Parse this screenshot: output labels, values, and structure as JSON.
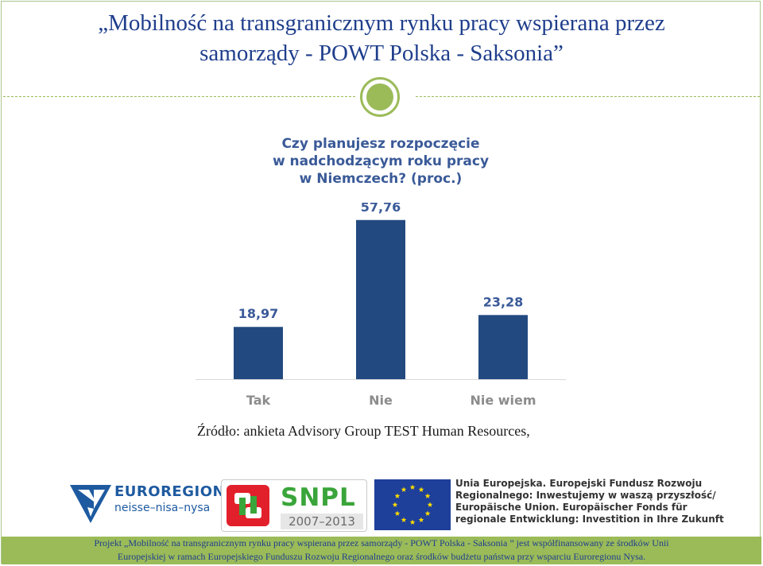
{
  "slide": {
    "title_line1": "„Mobilność na transgranicznym rynku pracy wspierana przez",
    "title_line2": "samorządy -  POWT Polska - Saksonia”"
  },
  "chart_data": {
    "type": "bar",
    "title_lines": [
      "Czy planujesz rozpoczęcie",
      "w nadchodzącym roku pracy",
      "w Niemczech? (proc.)"
    ],
    "categories": [
      "Tak",
      "Nie",
      "Nie wiem"
    ],
    "values": [
      18.97,
      57.76,
      23.28
    ],
    "value_labels": [
      "18,97",
      "57,76",
      "23,28"
    ],
    "bar_color": "#234a80",
    "ylim": [
      0,
      60
    ],
    "grid": false,
    "legend": false
  },
  "source": "Źródło: ankieta Advisory Group TEST Human Resources,",
  "logos": {
    "euroregion": {
      "name": "EUROREGION",
      "subtitle": "neisse–nisa–nysa"
    },
    "snpl": {
      "name": "SNPL",
      "years": "2007–2013"
    },
    "eu_text": [
      "Unia Europejska. Europejski Fundusz Rozwoju",
      "Regionalnego: Inwestujemy w waszą przyszłość/",
      "Europäische Union. Europäischer Fonds für",
      "regionale Entwicklung: Investition in Ihre Zukunft"
    ]
  },
  "footer": {
    "line1": "Projekt „Mobilność na transgranicznym rynku pracy wspierana przez samorządy - POWT  Polska - Saksonia ” jest współfinansowany ze środków Unii",
    "line2": "Europejskiej w ramach Europejskiego Funduszu Rozwoju Regionalnego oraz środków budżetu państwa  przy wsparciu Euroregionu Nysa."
  },
  "colors": {
    "title": "#1f3e8c",
    "accent_green": "#9bbb59",
    "chart_title": "#3a5a98",
    "category_label": "#8c8c8c"
  }
}
